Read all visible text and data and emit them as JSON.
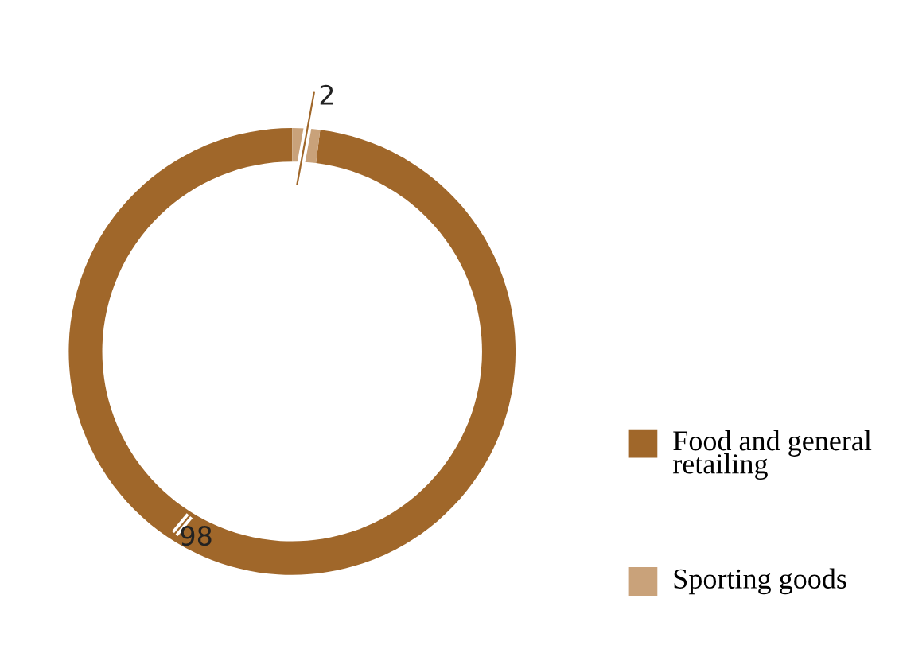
{
  "chart_data": {
    "type": "donut",
    "categories": [
      "Food and general retailing",
      "Sporting goods"
    ],
    "values": [
      98,
      2
    ],
    "colors": [
      "#a0672a",
      "#c9a27a"
    ],
    "data_labels": true,
    "legend": "bottom right"
  }
}
